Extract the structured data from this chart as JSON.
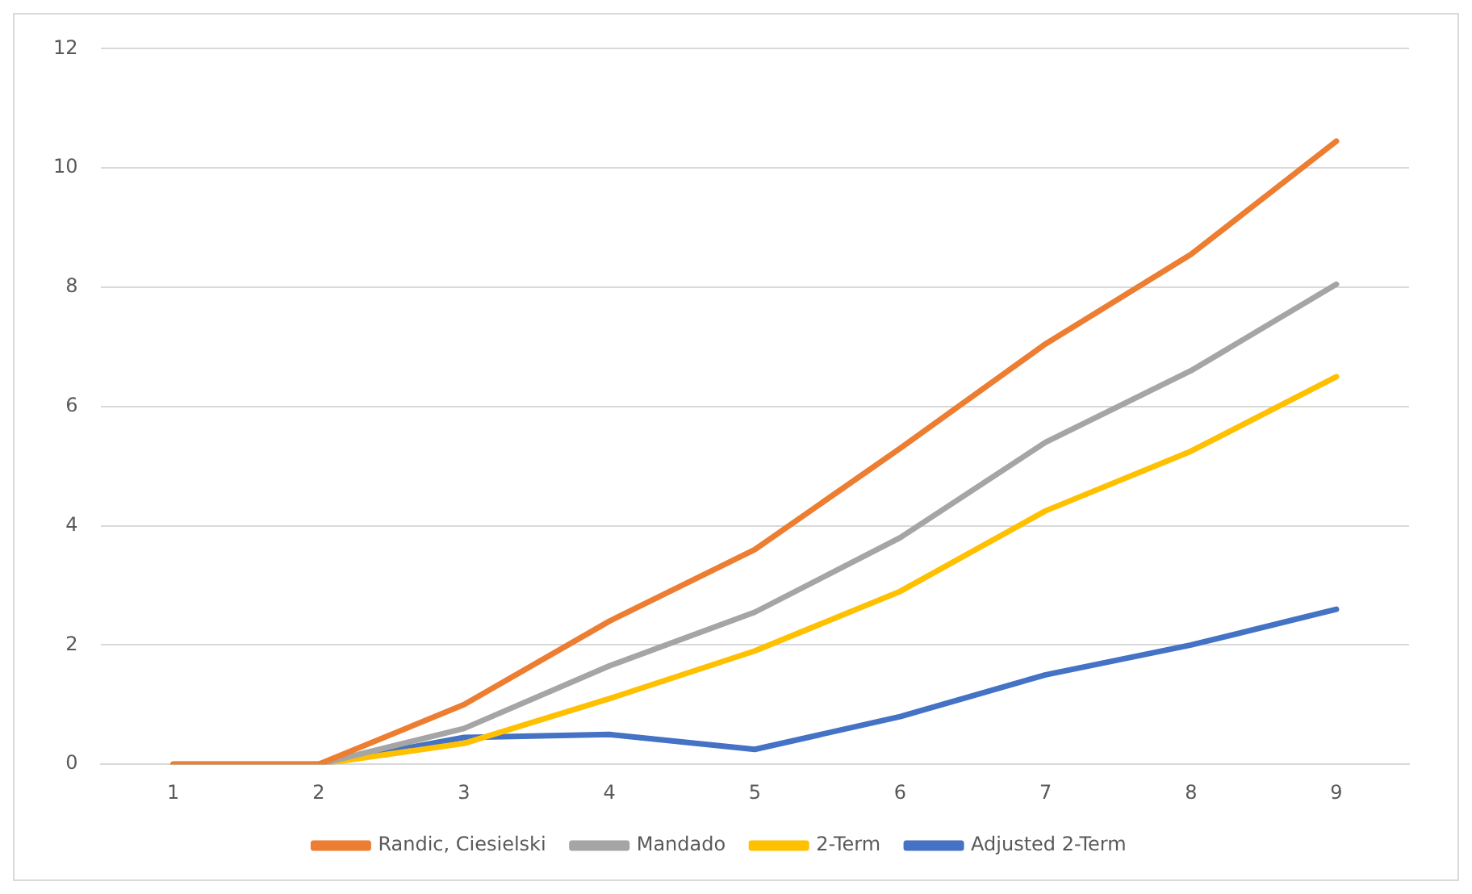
{
  "chart_data": {
    "type": "line",
    "categories": [
      "1",
      "2",
      "3",
      "4",
      "5",
      "6",
      "7",
      "8",
      "9"
    ],
    "series": [
      {
        "name": "Randic, Ciesielski",
        "color": "#ed7d31",
        "values": [
          0,
          0,
          1.0,
          2.4,
          3.6,
          5.3,
          7.05,
          8.55,
          10.45
        ]
      },
      {
        "name": "Mandado",
        "color": "#a5a5a5",
        "values": [
          0,
          0,
          0.6,
          1.65,
          2.55,
          3.8,
          5.4,
          6.6,
          8.05
        ]
      },
      {
        "name": "2-Term",
        "color": "#ffc000",
        "values": [
          0,
          0,
          0.35,
          1.1,
          1.9,
          2.9,
          4.25,
          5.25,
          6.5
        ]
      },
      {
        "name": "Adjusted 2-Term",
        "color": "#4472c4",
        "values": [
          0,
          0,
          0.45,
          0.5,
          0.25,
          0.8,
          1.5,
          2.0,
          2.6
        ]
      }
    ],
    "ylim": [
      0,
      12
    ],
    "yticks": [
      0,
      2,
      4,
      6,
      8,
      10,
      12
    ],
    "grid": "y",
    "legend": "bottom",
    "marker": "none",
    "line_style": "solid"
  }
}
